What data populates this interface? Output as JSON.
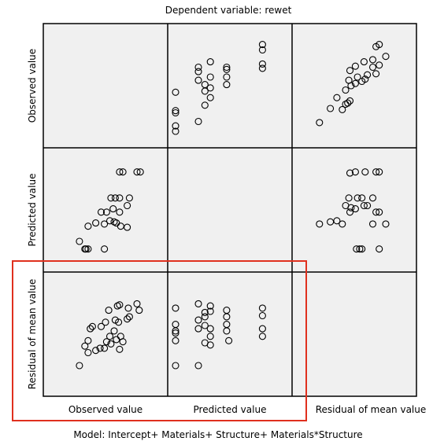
{
  "header": {
    "title": "Dependent variable: rewet"
  },
  "footer": {
    "model": "Model: Intercept+ Materials+ Structure+ Materials*Structure"
  },
  "highlight_color": "#e0301e",
  "chart_data": {
    "type": "scatter",
    "variables": [
      "Observed value",
      "Predicted value",
      "Residual of mean value"
    ],
    "grid": false,
    "panels": [
      {
        "row": 0,
        "col": 1,
        "points": [
          {
            "x": 0.0,
            "y": 0.08
          },
          {
            "x": 0.0,
            "y": 0.13
          },
          {
            "x": 0.0,
            "y": 0.25
          },
          {
            "x": 0.0,
            "y": 0.27
          },
          {
            "x": 0.0,
            "y": 0.44
          },
          {
            "x": 0.21,
            "y": 0.17
          },
          {
            "x": 0.21,
            "y": 0.55
          },
          {
            "x": 0.21,
            "y": 0.63
          },
          {
            "x": 0.21,
            "y": 0.67
          },
          {
            "x": 0.27,
            "y": 0.32
          },
          {
            "x": 0.27,
            "y": 0.45
          },
          {
            "x": 0.27,
            "y": 0.51
          },
          {
            "x": 0.32,
            "y": 0.39
          },
          {
            "x": 0.32,
            "y": 0.48
          },
          {
            "x": 0.32,
            "y": 0.58
          },
          {
            "x": 0.32,
            "y": 0.72
          },
          {
            "x": 0.47,
            "y": 0.51
          },
          {
            "x": 0.47,
            "y": 0.58
          },
          {
            "x": 0.47,
            "y": 0.65
          },
          {
            "x": 0.47,
            "y": 0.67
          },
          {
            "x": 0.8,
            "y": 0.66
          },
          {
            "x": 0.8,
            "y": 0.7
          },
          {
            "x": 0.8,
            "y": 0.83
          },
          {
            "x": 0.8,
            "y": 0.88
          }
        ]
      },
      {
        "row": 0,
        "col": 2,
        "points": [
          {
            "x": 0.18,
            "y": 0.16
          },
          {
            "x": 0.28,
            "y": 0.29
          },
          {
            "x": 0.34,
            "y": 0.39
          },
          {
            "x": 0.39,
            "y": 0.28
          },
          {
            "x": 0.42,
            "y": 0.33
          },
          {
            "x": 0.44,
            "y": 0.34
          },
          {
            "x": 0.46,
            "y": 0.36
          },
          {
            "x": 0.42,
            "y": 0.46
          },
          {
            "x": 0.47,
            "y": 0.5
          },
          {
            "x": 0.51,
            "y": 0.52
          },
          {
            "x": 0.45,
            "y": 0.55
          },
          {
            "x": 0.53,
            "y": 0.58
          },
          {
            "x": 0.46,
            "y": 0.64
          },
          {
            "x": 0.51,
            "y": 0.68
          },
          {
            "x": 0.57,
            "y": 0.54
          },
          {
            "x": 0.6,
            "y": 0.56
          },
          {
            "x": 0.62,
            "y": 0.6
          },
          {
            "x": 0.59,
            "y": 0.72
          },
          {
            "x": 0.7,
            "y": 0.61
          },
          {
            "x": 0.67,
            "y": 0.67
          },
          {
            "x": 0.67,
            "y": 0.74
          },
          {
            "x": 0.73,
            "y": 0.69
          },
          {
            "x": 0.79,
            "y": 0.77
          },
          {
            "x": 0.7,
            "y": 0.86
          },
          {
            "x": 0.73,
            "y": 0.88
          }
        ]
      },
      {
        "row": 1,
        "col": 0,
        "points": [
          {
            "x": 0.26,
            "y": 0.21
          },
          {
            "x": 0.31,
            "y": 0.14
          },
          {
            "x": 0.32,
            "y": 0.14
          },
          {
            "x": 0.34,
            "y": 0.14
          },
          {
            "x": 0.49,
            "y": 0.14
          },
          {
            "x": 0.34,
            "y": 0.35
          },
          {
            "x": 0.41,
            "y": 0.38
          },
          {
            "x": 0.49,
            "y": 0.37
          },
          {
            "x": 0.54,
            "y": 0.4
          },
          {
            "x": 0.58,
            "y": 0.39
          },
          {
            "x": 0.6,
            "y": 0.38
          },
          {
            "x": 0.64,
            "y": 0.35
          },
          {
            "x": 0.7,
            "y": 0.34
          },
          {
            "x": 0.46,
            "y": 0.48
          },
          {
            "x": 0.51,
            "y": 0.48
          },
          {
            "x": 0.57,
            "y": 0.51
          },
          {
            "x": 0.63,
            "y": 0.48
          },
          {
            "x": 0.7,
            "y": 0.54
          },
          {
            "x": 0.55,
            "y": 0.61
          },
          {
            "x": 0.59,
            "y": 0.61
          },
          {
            "x": 0.63,
            "y": 0.61
          },
          {
            "x": 0.72,
            "y": 0.61
          },
          {
            "x": 0.63,
            "y": 0.85
          },
          {
            "x": 0.66,
            "y": 0.85
          },
          {
            "x": 0.79,
            "y": 0.85
          },
          {
            "x": 0.82,
            "y": 0.85
          }
        ]
      },
      {
        "row": 1,
        "col": 2,
        "points": [
          {
            "x": 0.18,
            "y": 0.37
          },
          {
            "x": 0.28,
            "y": 0.39
          },
          {
            "x": 0.34,
            "y": 0.4
          },
          {
            "x": 0.39,
            "y": 0.37
          },
          {
            "x": 0.46,
            "y": 0.48
          },
          {
            "x": 0.42,
            "y": 0.54
          },
          {
            "x": 0.47,
            "y": 0.52
          },
          {
            "x": 0.51,
            "y": 0.51
          },
          {
            "x": 0.45,
            "y": 0.61
          },
          {
            "x": 0.53,
            "y": 0.61
          },
          {
            "x": 0.57,
            "y": 0.61
          },
          {
            "x": 0.59,
            "y": 0.54
          },
          {
            "x": 0.62,
            "y": 0.54
          },
          {
            "x": 0.46,
            "y": 0.84
          },
          {
            "x": 0.51,
            "y": 0.85
          },
          {
            "x": 0.6,
            "y": 0.85
          },
          {
            "x": 0.67,
            "y": 0.61
          },
          {
            "x": 0.7,
            "y": 0.48
          },
          {
            "x": 0.73,
            "y": 0.48
          },
          {
            "x": 0.67,
            "y": 0.37
          },
          {
            "x": 0.79,
            "y": 0.37
          },
          {
            "x": 0.7,
            "y": 0.85
          },
          {
            "x": 0.73,
            "y": 0.85
          },
          {
            "x": 0.52,
            "y": 0.14
          },
          {
            "x": 0.55,
            "y": 0.14
          },
          {
            "x": 0.57,
            "y": 0.14
          },
          {
            "x": 0.73,
            "y": 0.14
          }
        ]
      },
      {
        "row": 2,
        "col": 0,
        "points": [
          {
            "x": 0.26,
            "y": 0.21
          },
          {
            "x": 0.34,
            "y": 0.33
          },
          {
            "x": 0.31,
            "y": 0.39
          },
          {
            "x": 0.34,
            "y": 0.44
          },
          {
            "x": 0.41,
            "y": 0.35
          },
          {
            "x": 0.45,
            "y": 0.37
          },
          {
            "x": 0.49,
            "y": 0.37
          },
          {
            "x": 0.51,
            "y": 0.43
          },
          {
            "x": 0.55,
            "y": 0.41
          },
          {
            "x": 0.54,
            "y": 0.48
          },
          {
            "x": 0.58,
            "y": 0.53
          },
          {
            "x": 0.6,
            "y": 0.45
          },
          {
            "x": 0.64,
            "y": 0.48
          },
          {
            "x": 0.63,
            "y": 0.36
          },
          {
            "x": 0.66,
            "y": 0.43
          },
          {
            "x": 0.36,
            "y": 0.55
          },
          {
            "x": 0.38,
            "y": 0.57
          },
          {
            "x": 0.46,
            "y": 0.57
          },
          {
            "x": 0.5,
            "y": 0.61
          },
          {
            "x": 0.59,
            "y": 0.63
          },
          {
            "x": 0.62,
            "y": 0.61
          },
          {
            "x": 0.7,
            "y": 0.64
          },
          {
            "x": 0.72,
            "y": 0.66
          },
          {
            "x": 0.53,
            "y": 0.72
          },
          {
            "x": 0.61,
            "y": 0.76
          },
          {
            "x": 0.63,
            "y": 0.77
          },
          {
            "x": 0.71,
            "y": 0.74
          },
          {
            "x": 0.79,
            "y": 0.78
          },
          {
            "x": 0.81,
            "y": 0.72
          }
        ]
      },
      {
        "row": 2,
        "col": 1,
        "points": [
          {
            "x": 0.0,
            "y": 0.21
          },
          {
            "x": 0.0,
            "y": 0.44
          },
          {
            "x": 0.0,
            "y": 0.51
          },
          {
            "x": 0.0,
            "y": 0.53
          },
          {
            "x": 0.0,
            "y": 0.59
          },
          {
            "x": 0.0,
            "y": 0.74
          },
          {
            "x": 0.21,
            "y": 0.55
          },
          {
            "x": 0.21,
            "y": 0.63
          },
          {
            "x": 0.21,
            "y": 0.78
          },
          {
            "x": 0.27,
            "y": 0.58
          },
          {
            "x": 0.27,
            "y": 0.66
          },
          {
            "x": 0.27,
            "y": 0.7
          },
          {
            "x": 0.32,
            "y": 0.48
          },
          {
            "x": 0.32,
            "y": 0.55
          },
          {
            "x": 0.32,
            "y": 0.71
          },
          {
            "x": 0.32,
            "y": 0.76
          },
          {
            "x": 0.47,
            "y": 0.53
          },
          {
            "x": 0.47,
            "y": 0.59
          },
          {
            "x": 0.47,
            "y": 0.66
          },
          {
            "x": 0.47,
            "y": 0.72
          },
          {
            "x": 0.8,
            "y": 0.48
          },
          {
            "x": 0.8,
            "y": 0.55
          },
          {
            "x": 0.8,
            "y": 0.67
          },
          {
            "x": 0.8,
            "y": 0.74
          },
          {
            "x": 0.21,
            "y": 0.21
          },
          {
            "x": 0.27,
            "y": 0.42
          },
          {
            "x": 0.32,
            "y": 0.4
          },
          {
            "x": 0.49,
            "y": 0.44
          }
        ]
      }
    ]
  }
}
